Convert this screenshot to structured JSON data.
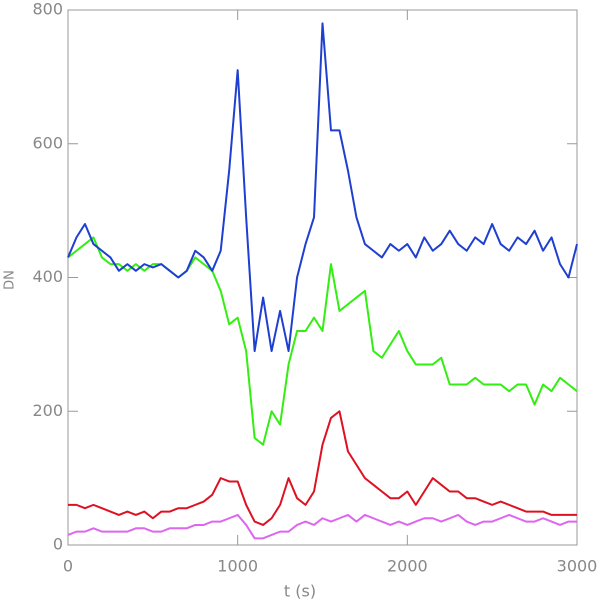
{
  "chart_data": {
    "type": "line",
    "xlabel": "t (s)",
    "ylabel": "DN",
    "xlim": [
      0,
      3000
    ],
    "xticks": [
      0,
      1000,
      2000,
      3000
    ],
    "ylim": [
      0,
      800
    ],
    "yticks": [
      0,
      200,
      400,
      600,
      800
    ],
    "x": [
      0,
      50,
      100,
      150,
      200,
      250,
      300,
      350,
      400,
      450,
      500,
      550,
      600,
      650,
      700,
      750,
      800,
      850,
      900,
      950,
      1000,
      1050,
      1100,
      1150,
      1200,
      1250,
      1300,
      1350,
      1400,
      1450,
      1500,
      1550,
      1600,
      1650,
      1700,
      1750,
      1800,
      1850,
      1900,
      1950,
      2000,
      2050,
      2100,
      2150,
      2200,
      2250,
      2300,
      2350,
      2400,
      2450,
      2500,
      2550,
      2600,
      2650,
      2700,
      2750,
      2800,
      2850,
      2900,
      2950,
      3000
    ],
    "series": [
      {
        "color": "#dd66ee",
        "values": [
          15,
          20,
          20,
          25,
          20,
          20,
          20,
          20,
          25,
          25,
          20,
          20,
          25,
          25,
          25,
          30,
          30,
          35,
          35,
          40,
          45,
          30,
          10,
          10,
          15,
          20,
          20,
          30,
          35,
          30,
          40,
          35,
          40,
          45,
          35,
          45,
          40,
          35,
          30,
          35,
          30,
          35,
          40,
          40,
          35,
          40,
          45,
          35,
          30,
          35,
          35,
          40,
          45,
          40,
          35,
          35,
          40,
          35,
          30,
          35,
          35
        ]
      },
      {
        "color": "#dd1122",
        "values": [
          60,
          60,
          55,
          60,
          55,
          50,
          45,
          50,
          45,
          50,
          40,
          50,
          50,
          55,
          55,
          60,
          65,
          75,
          100,
          95,
          95,
          60,
          35,
          30,
          40,
          60,
          100,
          70,
          60,
          80,
          150,
          190,
          200,
          140,
          120,
          100,
          90,
          80,
          70,
          70,
          80,
          60,
          80,
          100,
          90,
          80,
          80,
          70,
          70,
          65,
          60,
          65,
          60,
          55,
          50,
          50,
          50,
          45,
          45,
          45,
          45
        ]
      },
      {
        "color": "#33ee11",
        "values": [
          430,
          440,
          450,
          460,
          430,
          420,
          420,
          410,
          420,
          410,
          420,
          420,
          410,
          400,
          410,
          430,
          420,
          410,
          380,
          330,
          340,
          290,
          160,
          150,
          200,
          180,
          270,
          320,
          320,
          340,
          320,
          420,
          350,
          360,
          370,
          380,
          290,
          280,
          300,
          320,
          290,
          270,
          270,
          270,
          280,
          240,
          240,
          240,
          250,
          240,
          240,
          240,
          230,
          240,
          240,
          210,
          240,
          230,
          250,
          240,
          230
        ]
      },
      {
        "color": "#1f3fd0",
        "values": [
          430,
          460,
          480,
          450,
          440,
          430,
          410,
          420,
          410,
          420,
          415,
          420,
          410,
          400,
          410,
          440,
          430,
          410,
          440,
          560,
          710,
          490,
          290,
          370,
          290,
          350,
          290,
          400,
          450,
          490,
          780,
          620,
          620,
          560,
          490,
          450,
          440,
          430,
          450,
          440,
          450,
          430,
          460,
          440,
          450,
          470,
          450,
          440,
          460,
          450,
          480,
          450,
          440,
          460,
          450,
          470,
          440,
          460,
          420,
          400,
          450
        ]
      }
    ]
  }
}
